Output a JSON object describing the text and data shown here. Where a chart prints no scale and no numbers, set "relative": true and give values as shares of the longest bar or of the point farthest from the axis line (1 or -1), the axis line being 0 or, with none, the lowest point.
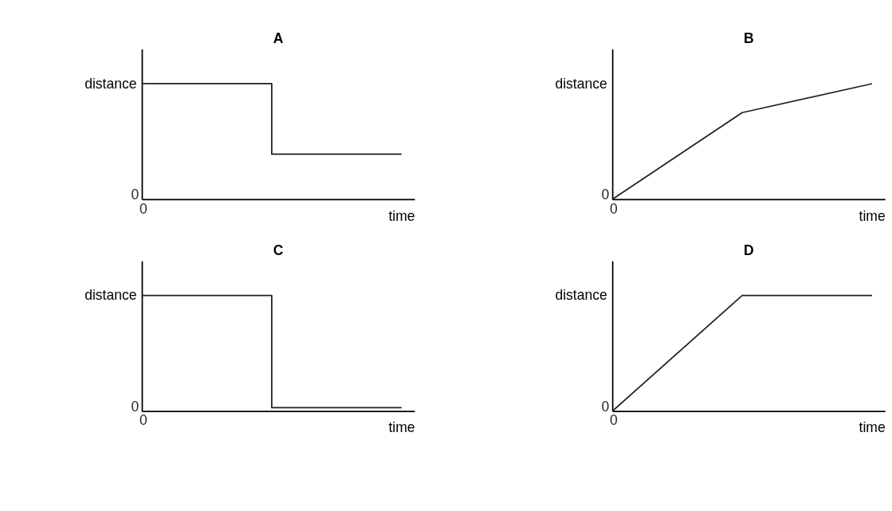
{
  "chart_data": [
    {
      "type": "step",
      "title": "A",
      "xlabel": "time",
      "ylabel": "distance",
      "relative": true,
      "categories": [
        null,
        null,
        null
      ],
      "annotations": [
        "0",
        "0"
      ],
      "marker": "none",
      "line_style": "solid",
      "series": [
        {
          "color": "#231f20",
          "values": [
            1,
            0.39,
            0.39
          ]
        }
      ]
    },
    {
      "type": "line",
      "title": "B",
      "xlabel": "time",
      "ylabel": "distance",
      "relative": true,
      "categories": [
        null,
        null,
        null
      ],
      "annotations": [
        "0",
        "0"
      ],
      "marker": "none",
      "line_style": "solid",
      "series": [
        {
          "color": "#231f20",
          "values": [
            0,
            0.75,
            1
          ]
        }
      ]
    },
    {
      "type": "step",
      "title": "C",
      "xlabel": "time",
      "ylabel": "distance",
      "relative": true,
      "categories": [
        null,
        null,
        null
      ],
      "annotations": [
        "0",
        "0"
      ],
      "marker": "none",
      "line_style": "solid",
      "series": [
        {
          "color": "#231f20",
          "values": [
            1,
            0.03,
            0.03
          ]
        }
      ]
    },
    {
      "type": "line",
      "title": "D",
      "xlabel": "time",
      "ylabel": "distance",
      "relative": true,
      "categories": [
        null,
        null,
        null
      ],
      "annotations": [
        "0",
        "0"
      ],
      "marker": "none",
      "line_style": "solid",
      "series": [
        {
          "color": "#231f20",
          "values": [
            0,
            1,
            1
          ]
        }
      ]
    }
  ]
}
